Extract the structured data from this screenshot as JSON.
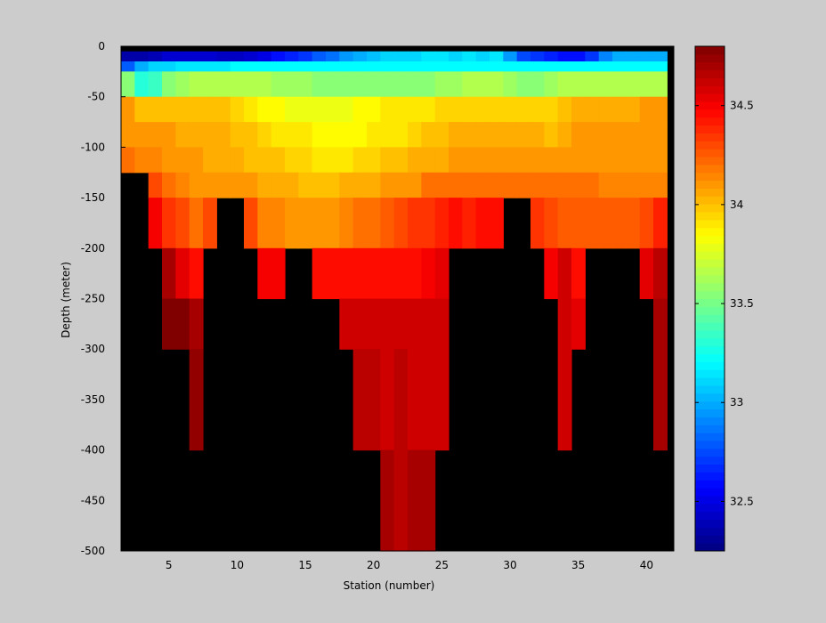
{
  "chart_data": {
    "type": "heatmap",
    "title": "",
    "xlabel": "Station (number)",
    "ylabel": "Depth (meter)",
    "xlim": [
      1.5,
      42
    ],
    "ylim": [
      -500,
      0
    ],
    "x_ticks": [
      5,
      10,
      15,
      20,
      25,
      30,
      35,
      40
    ],
    "y_ticks": [
      0,
      -50,
      -100,
      -150,
      -200,
      -250,
      -300,
      -350,
      -400,
      -450,
      -500
    ],
    "colorbar": {
      "range": [
        32.25,
        34.8
      ],
      "ticks": [
        32.5,
        33,
        33.5,
        34,
        34.5
      ],
      "colormap": "jet",
      "mask_color": "#000000"
    },
    "stations": [
      2,
      3,
      4,
      5,
      6,
      7,
      8,
      9,
      10,
      11,
      12,
      13,
      14,
      15,
      16,
      17,
      18,
      19,
      20,
      21,
      22,
      23,
      24,
      25,
      26,
      27,
      28,
      29,
      30,
      31,
      32,
      33,
      34,
      35,
      36,
      37,
      38,
      39,
      40,
      41
    ],
    "depth_bins": [
      {
        "top": -5,
        "bottom": -15
      },
      {
        "top": -15,
        "bottom": -25
      },
      {
        "top": -25,
        "bottom": -50
      },
      {
        "top": -50,
        "bottom": -75
      },
      {
        "top": -75,
        "bottom": -100
      },
      {
        "top": -100,
        "bottom": -125
      },
      {
        "top": -125,
        "bottom": -150
      },
      {
        "top": -150,
        "bottom": -200
      },
      {
        "top": -200,
        "bottom": -250
      },
      {
        "top": -250,
        "bottom": -300
      },
      {
        "top": -300,
        "bottom": -400
      },
      {
        "top": -400,
        "bottom": -500
      }
    ],
    "salinity": [
      [
        32.35,
        32.35,
        32.38,
        32.45,
        32.45,
        32.45,
        32.45,
        32.42,
        32.42,
        32.45,
        32.5,
        32.6,
        32.65,
        32.7,
        32.8,
        32.85,
        32.95,
        33.0,
        33.05,
        33.1,
        33.1,
        33.1,
        33.15,
        33.15,
        33.1,
        33.15,
        33.1,
        33.15,
        32.95,
        32.75,
        32.7,
        32.65,
        32.6,
        32.6,
        32.7,
        32.9,
        33.0,
        33.0,
        33.0,
        33.0
      ],
      [
        32.8,
        33.0,
        33.1,
        33.1,
        33.15,
        33.15,
        33.15,
        33.15,
        33.2,
        33.2,
        33.2,
        33.2,
        33.2,
        33.2,
        33.2,
        33.2,
        33.2,
        33.2,
        33.2,
        33.2,
        33.2,
        33.2,
        33.2,
        33.2,
        33.2,
        33.2,
        33.2,
        33.2,
        33.2,
        33.2,
        33.2,
        33.2,
        33.2,
        33.2,
        33.2,
        33.2,
        33.2,
        33.2,
        33.2,
        33.2
      ],
      [
        33.55,
        33.3,
        33.35,
        33.55,
        33.6,
        33.65,
        33.65,
        33.65,
        33.65,
        33.65,
        33.65,
        33.6,
        33.6,
        33.6,
        33.55,
        33.55,
        33.55,
        33.55,
        33.55,
        33.55,
        33.55,
        33.55,
        33.55,
        33.6,
        33.6,
        33.65,
        33.65,
        33.65,
        33.6,
        33.55,
        33.55,
        33.6,
        33.65,
        33.65,
        33.65,
        33.65,
        33.65,
        33.65,
        33.65,
        33.65
      ],
      [
        34.1,
        34.0,
        34.0,
        34.0,
        34.0,
        34.0,
        34.0,
        34.0,
        33.95,
        33.9,
        33.85,
        33.85,
        33.8,
        33.8,
        33.8,
        33.8,
        33.8,
        33.85,
        33.85,
        33.9,
        33.9,
        33.9,
        33.9,
        33.95,
        33.95,
        33.95,
        33.95,
        33.95,
        33.95,
        33.95,
        33.95,
        33.95,
        34.0,
        34.05,
        34.05,
        34.05,
        34.05,
        34.05,
        34.1,
        34.1
      ],
      [
        34.1,
        34.1,
        34.1,
        34.1,
        34.05,
        34.05,
        34.05,
        34.05,
        34.0,
        34.0,
        33.95,
        33.9,
        33.9,
        33.9,
        33.85,
        33.85,
        33.85,
        33.85,
        33.9,
        33.9,
        33.9,
        33.95,
        34.0,
        34.0,
        34.05,
        34.05,
        34.05,
        34.05,
        34.05,
        34.05,
        34.05,
        34.0,
        34.05,
        34.1,
        34.1,
        34.1,
        34.1,
        34.1,
        34.1,
        34.1
      ],
      [
        34.2,
        34.15,
        34.15,
        34.1,
        34.1,
        34.1,
        34.05,
        34.05,
        34.05,
        34.0,
        34.0,
        34.0,
        33.95,
        33.95,
        33.9,
        33.9,
        33.9,
        33.95,
        33.95,
        34.0,
        34.0,
        34.05,
        34.05,
        34.05,
        34.1,
        34.1,
        34.1,
        34.1,
        34.1,
        34.1,
        34.1,
        34.1,
        34.1,
        34.1,
        34.1,
        34.1,
        34.1,
        34.1,
        34.1,
        34.1
      ],
      [
        null,
        null,
        34.3,
        34.2,
        34.15,
        34.1,
        34.1,
        34.1,
        34.1,
        34.1,
        34.05,
        34.05,
        34.05,
        34.0,
        34.0,
        34.0,
        34.05,
        34.05,
        34.05,
        34.1,
        34.1,
        34.1,
        34.2,
        34.2,
        34.2,
        34.2,
        34.2,
        34.2,
        34.2,
        34.2,
        34.2,
        34.2,
        34.2,
        34.2,
        34.2,
        34.15,
        34.15,
        34.15,
        34.15,
        34.15
      ],
      [
        null,
        null,
        34.5,
        34.35,
        34.3,
        34.2,
        34.3,
        null,
        null,
        34.3,
        34.15,
        34.15,
        34.1,
        34.1,
        34.1,
        34.1,
        34.15,
        34.2,
        34.2,
        34.25,
        34.3,
        34.35,
        34.35,
        34.4,
        34.45,
        34.4,
        34.45,
        34.45,
        null,
        null,
        34.35,
        34.3,
        34.25,
        34.25,
        34.25,
        34.25,
        34.25,
        34.25,
        34.3,
        34.4
      ],
      [
        null,
        null,
        null,
        34.7,
        34.55,
        34.45,
        null,
        null,
        null,
        null,
        34.5,
        34.5,
        null,
        null,
        34.45,
        34.45,
        34.45,
        34.45,
        34.45,
        34.45,
        34.45,
        34.45,
        34.5,
        34.55,
        null,
        null,
        null,
        null,
        null,
        null,
        null,
        34.5,
        34.6,
        34.45,
        null,
        null,
        null,
        null,
        34.55,
        34.65
      ],
      [
        null,
        null,
        null,
        34.8,
        34.8,
        34.7,
        null,
        null,
        null,
        null,
        null,
        null,
        null,
        null,
        null,
        null,
        34.6,
        34.6,
        34.6,
        34.6,
        34.6,
        34.6,
        34.6,
        34.6,
        null,
        null,
        null,
        null,
        null,
        null,
        null,
        null,
        34.6,
        34.55,
        null,
        null,
        null,
        null,
        null,
        34.7
      ],
      [
        null,
        null,
        null,
        null,
        null,
        34.75,
        null,
        null,
        null,
        null,
        null,
        null,
        null,
        null,
        null,
        null,
        null,
        34.65,
        34.65,
        34.6,
        34.65,
        34.6,
        34.6,
        34.6,
        null,
        null,
        null,
        null,
        null,
        null,
        null,
        null,
        34.6,
        null,
        null,
        null,
        null,
        null,
        null,
        34.7
      ],
      [
        null,
        null,
        null,
        null,
        null,
        null,
        null,
        null,
        null,
        null,
        null,
        null,
        null,
        null,
        null,
        null,
        null,
        null,
        null,
        34.7,
        34.65,
        34.7,
        34.7,
        null,
        null,
        null,
        null,
        null,
        null,
        null,
        null,
        null,
        null,
        null,
        null,
        null,
        null,
        null,
        null,
        null
      ]
    ]
  }
}
